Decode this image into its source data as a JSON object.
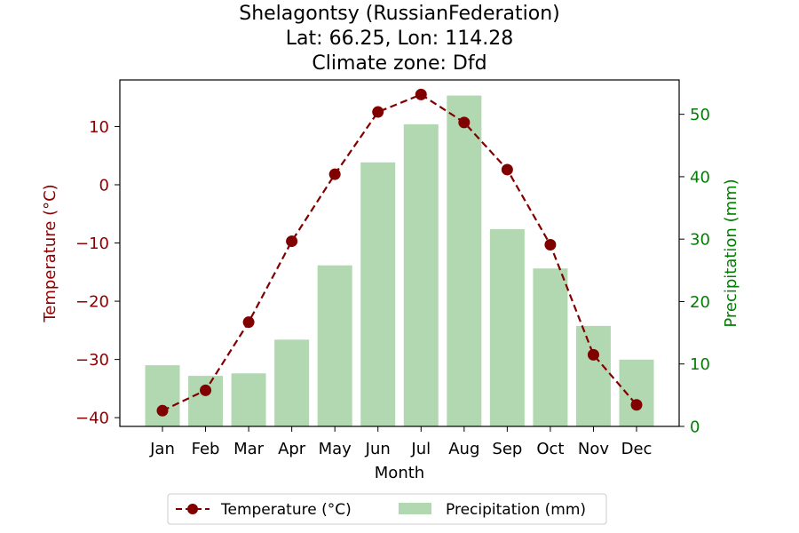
{
  "chart_data": {
    "type": "bar+line",
    "title": [
      "Shelagontsy (RussianFederation)",
      "Lat: 66.25, Lon: 114.28",
      "Climate zone: Dfd"
    ],
    "xlabel": "Month",
    "categories": [
      "Jan",
      "Feb",
      "Mar",
      "Apr",
      "May",
      "Jun",
      "Jul",
      "Aug",
      "Sep",
      "Oct",
      "Nov",
      "Dec"
    ],
    "left_axis": {
      "label": "Temperature (°C)",
      "color": "#8b0000",
      "ylim": [
        -41.5,
        18
      ],
      "ticks": [
        10,
        0,
        -10,
        -20,
        -30,
        -40
      ],
      "tick_labels": [
        "10",
        "0",
        "−10",
        "−20",
        "−30",
        "−40"
      ]
    },
    "right_axis": {
      "label": "Precipitation (mm)",
      "color": "#008000",
      "ylim": [
        0,
        55.5
      ],
      "ticks": [
        0,
        10,
        20,
        30,
        40,
        50
      ],
      "tick_labels": [
        "0",
        "10",
        "20",
        "30",
        "40",
        "50"
      ]
    },
    "series": [
      {
        "name": "Temperature (°C)",
        "type": "line",
        "axis": "left",
        "color": "#800000",
        "style": "dashed",
        "marker": "circle",
        "values": [
          -38.8,
          -35.3,
          -23.6,
          -9.7,
          1.8,
          12.5,
          15.5,
          10.7,
          2.6,
          -10.3,
          -29.2,
          -37.8
        ]
      },
      {
        "name": "Precipitation (mm)",
        "type": "bar",
        "axis": "right",
        "color": "#b2d8b2",
        "values": [
          9.8,
          8.1,
          8.5,
          13.9,
          25.8,
          42.3,
          48.4,
          53.0,
          31.6,
          25.3,
          16.1,
          10.7
        ]
      }
    ],
    "legend_position": "bottom-center"
  }
}
